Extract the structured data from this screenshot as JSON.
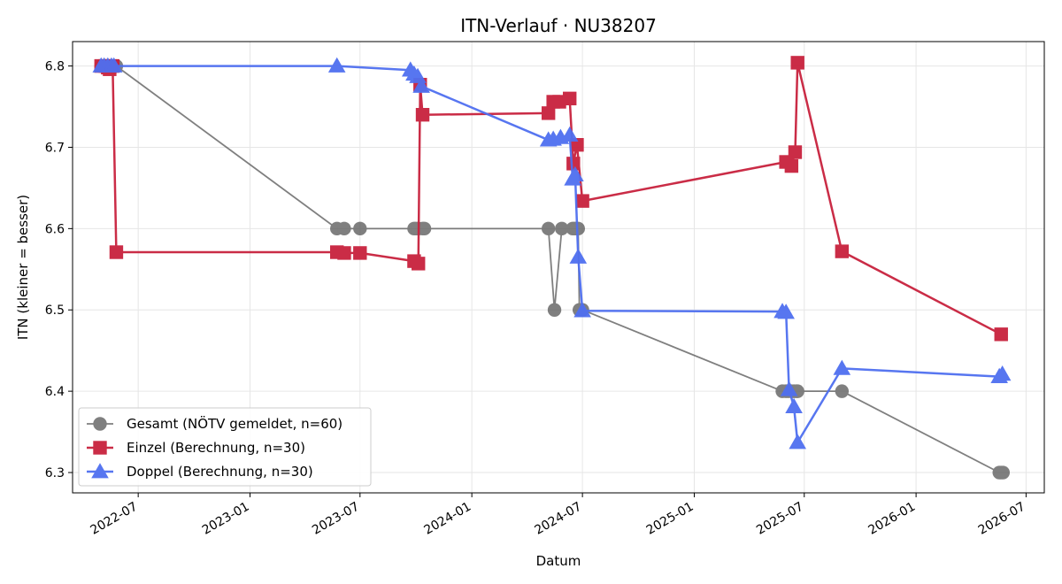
{
  "chart_data": {
    "type": "line",
    "title": "ITN-Verlauf · NU38207",
    "xlabel": "Datum",
    "ylabel": "ITN  (kleiner = besser)",
    "xlim": [
      "2022-03-15",
      "2026-07-31"
    ],
    "ylim": [
      6.275,
      6.83
    ],
    "grid": true,
    "legend_position": "lower-left",
    "x_ticks": [
      "2022-07-01",
      "2023-01-01",
      "2023-07-01",
      "2024-01-01",
      "2024-07-01",
      "2025-01-01",
      "2025-07-01",
      "2026-01-01",
      "2026-07-01"
    ],
    "x_tick_labels": [
      "2022-07",
      "2023-01",
      "2023-07",
      "2024-01",
      "2024-07",
      "2025-01",
      "2025-07",
      "2026-01",
      "2026-07"
    ],
    "y_ticks": [
      6.3,
      6.4,
      6.5,
      6.6,
      6.7,
      6.8
    ],
    "y_tick_labels": [
      "6.3",
      "6.4",
      "6.5",
      "6.6",
      "6.7",
      "6.8"
    ],
    "series": [
      {
        "name": "Gesamt (NÖTV gemeldet, n=60)",
        "color": "#555555",
        "marker": "circle",
        "points": [
          [
            "2022-05-01",
            6.8
          ],
          [
            "2022-05-05",
            6.8
          ],
          [
            "2022-05-10",
            6.8
          ],
          [
            "2022-05-15",
            6.8
          ],
          [
            "2022-05-18",
            6.8
          ],
          [
            "2022-05-22",
            6.8
          ],
          [
            "2022-05-26",
            6.8
          ],
          [
            "2023-05-24",
            6.6
          ],
          [
            "2023-06-05",
            6.6
          ],
          [
            "2023-07-01",
            6.6
          ],
          [
            "2023-09-28",
            6.6
          ],
          [
            "2023-10-01",
            6.6
          ],
          [
            "2023-10-05",
            6.6
          ],
          [
            "2023-10-12",
            6.6
          ],
          [
            "2023-10-15",
            6.6
          ],
          [
            "2024-05-06",
            6.6
          ],
          [
            "2024-05-16",
            6.5
          ],
          [
            "2024-05-28",
            6.6
          ],
          [
            "2024-06-15",
            6.6
          ],
          [
            "2024-06-18",
            6.6
          ],
          [
            "2024-06-21",
            6.6
          ],
          [
            "2024-06-24",
            6.6
          ],
          [
            "2024-06-26",
            6.5
          ],
          [
            "2024-07-01",
            6.5
          ],
          [
            "2025-05-26",
            6.4
          ],
          [
            "2025-06-01",
            6.4
          ],
          [
            "2025-06-05",
            6.4
          ],
          [
            "2025-06-10",
            6.4
          ],
          [
            "2025-06-14",
            6.4
          ],
          [
            "2025-06-18",
            6.4
          ],
          [
            "2025-06-20",
            6.4
          ],
          [
            "2025-09-01",
            6.4
          ],
          [
            "2026-05-18",
            6.3
          ],
          [
            "2026-05-21",
            6.3
          ],
          [
            "2026-05-24",
            6.3
          ]
        ]
      },
      {
        "name": "Einzel (Berechnung, n=30)",
        "color": "#c8213d",
        "marker": "square",
        "points": [
          [
            "2022-05-01",
            6.8
          ],
          [
            "2022-05-08",
            6.8
          ],
          [
            "2022-05-12",
            6.798
          ],
          [
            "2022-05-15",
            6.796
          ],
          [
            "2022-05-20",
            6.8
          ],
          [
            "2022-05-26",
            6.571
          ],
          [
            "2023-05-24",
            6.571
          ],
          [
            "2023-06-05",
            6.57
          ],
          [
            "2023-07-01",
            6.57
          ],
          [
            "2023-09-28",
            6.56
          ],
          [
            "2023-10-05",
            6.557
          ],
          [
            "2023-10-08",
            6.777
          ],
          [
            "2023-10-12",
            6.74
          ],
          [
            "2024-05-06",
            6.742
          ],
          [
            "2024-05-14",
            6.756
          ],
          [
            "2024-05-24",
            6.756
          ],
          [
            "2024-06-10",
            6.76
          ],
          [
            "2024-06-16",
            6.68
          ],
          [
            "2024-06-22",
            6.703
          ],
          [
            "2024-07-01",
            6.634
          ],
          [
            "2025-06-01",
            6.682
          ],
          [
            "2025-06-10",
            6.677
          ],
          [
            "2025-06-16",
            6.694
          ],
          [
            "2025-06-20",
            6.804
          ],
          [
            "2025-09-01",
            6.572
          ],
          [
            "2026-05-21",
            6.47
          ]
        ]
      },
      {
        "name": "Doppel (Berechnung, n=30)",
        "color": "#4f6ff0",
        "marker": "triangle",
        "points": [
          [
            "2022-05-01",
            6.8
          ],
          [
            "2022-05-06",
            6.8
          ],
          [
            "2022-05-12",
            6.8
          ],
          [
            "2022-05-18",
            6.8
          ],
          [
            "2022-05-22",
            6.8
          ],
          [
            "2023-05-24",
            6.8
          ],
          [
            "2023-09-22",
            6.795
          ],
          [
            "2023-09-28",
            6.79
          ],
          [
            "2023-10-04",
            6.787
          ],
          [
            "2023-10-10",
            6.775
          ],
          [
            "2024-05-06",
            6.709
          ],
          [
            "2024-05-14",
            6.71
          ],
          [
            "2024-05-26",
            6.712
          ],
          [
            "2024-06-10",
            6.715
          ],
          [
            "2024-06-15",
            6.661
          ],
          [
            "2024-06-19",
            6.666
          ],
          [
            "2024-06-24",
            6.565
          ],
          [
            "2024-07-01",
            6.499
          ],
          [
            "2025-05-26",
            6.498
          ],
          [
            "2025-06-01",
            6.497
          ],
          [
            "2025-06-06",
            6.402
          ],
          [
            "2025-06-14",
            6.381
          ],
          [
            "2025-06-20",
            6.337
          ],
          [
            "2025-09-01",
            6.428
          ],
          [
            "2026-05-18",
            6.418
          ],
          [
            "2026-05-23",
            6.421
          ]
        ]
      }
    ]
  }
}
